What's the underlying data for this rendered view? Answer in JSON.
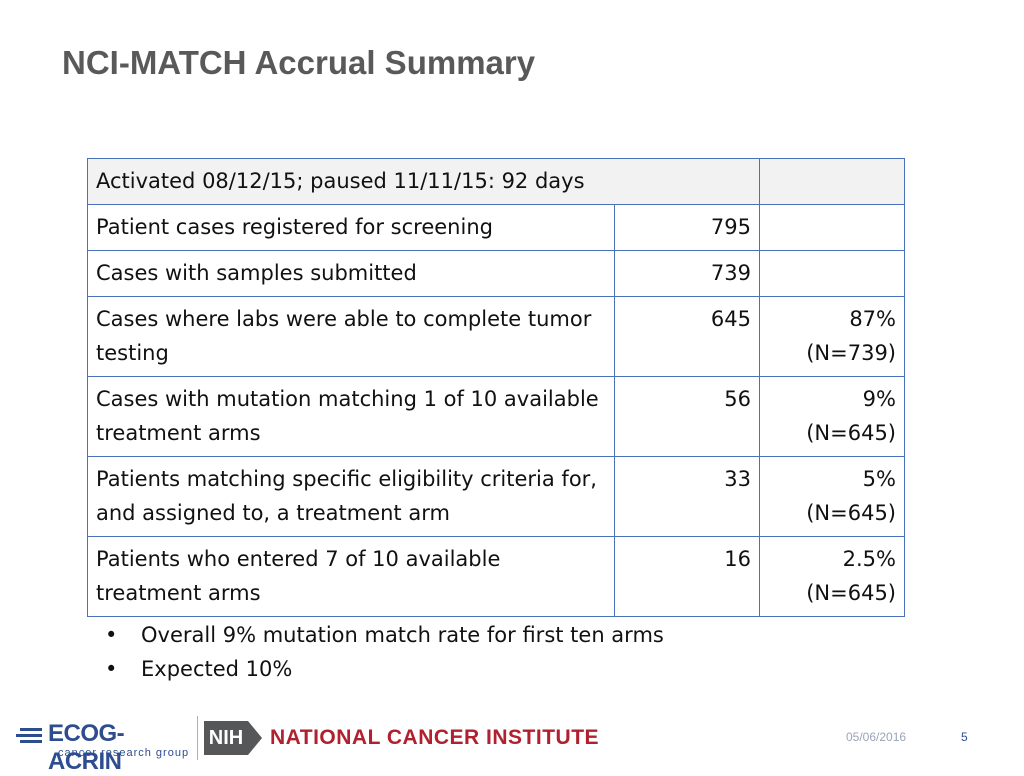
{
  "title": "NCI-MATCH Accrual Summary",
  "table": {
    "rows": [
      {
        "label": "Activated 08/12/15; paused 11/11/15: 92 days",
        "value": "",
        "pct": "",
        "pct_n": ""
      },
      {
        "label": "Patient cases registered for screening",
        "value": "795",
        "pct": "",
        "pct_n": ""
      },
      {
        "label": "Cases with samples submitted",
        "value": "739",
        "pct": "",
        "pct_n": ""
      },
      {
        "label": "Cases where labs were able to complete tumor testing",
        "value": "645",
        "pct": "87%",
        "pct_n": "(N=739)"
      },
      {
        "label": "Cases with mutation matching 1 of 10 available treatment arms",
        "value": "56",
        "pct": "9%",
        "pct_n": "(N=645)"
      },
      {
        "label": "Patients matching specific eligibility criteria for, and assigned to, a treatment arm",
        "value": "33",
        "pct": "5%",
        "pct_n": "(N=645)"
      },
      {
        "label": "Patients who entered 7 of 10 available treatment arms",
        "value": "16",
        "pct": "2.5%",
        "pct_n": "(N=645)"
      }
    ]
  },
  "bullets": [
    "Overall 9%  mutation match rate for first ten arms",
    "Expected 10%"
  ],
  "footer": {
    "ecog_name": "ECOG-ACRIN",
    "ecog_sub": "cancer research group",
    "nih": "NIH",
    "nci": "NATIONAL CANCER INSTITUTE",
    "date": "05/06/2016",
    "page": "5"
  },
  "colors": {
    "title": "#595959",
    "table_border": "#4a72b8",
    "nci_red": "#b0202e",
    "ecog_blue": "#2e4d8f"
  }
}
